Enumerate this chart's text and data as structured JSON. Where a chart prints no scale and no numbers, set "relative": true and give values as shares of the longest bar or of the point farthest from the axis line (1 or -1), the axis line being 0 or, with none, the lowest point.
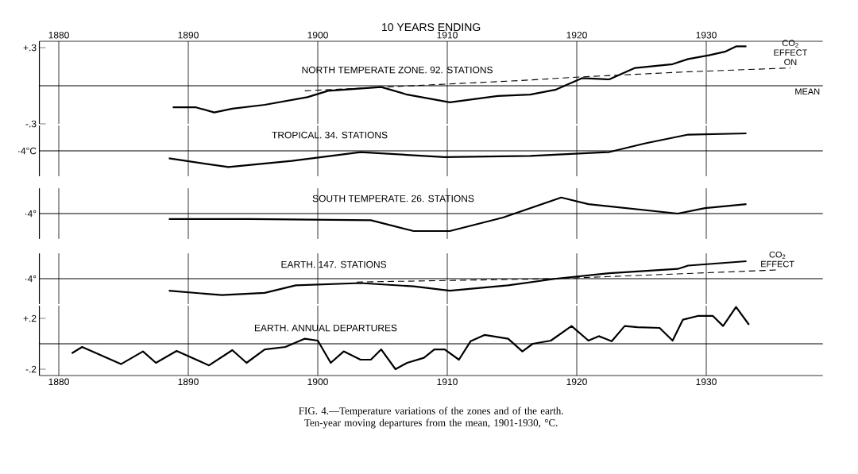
{
  "chart_data": [
    {
      "type": "line",
      "title": "NORTH TEMPERATE ZONE. 92. STATIONS",
      "xlabel": "10 YEARS ENDING",
      "xlim": [
        1878.5,
        1939
      ],
      "xticks": [
        1880,
        1890,
        1900,
        1910,
        1920,
        1930
      ],
      "ylim": [
        -0.3,
        0.35
      ],
      "yticks": [
        {
          "value": 0.3,
          "label": "+.3"
        },
        {
          "value": -0.3,
          "label": "-.3"
        }
      ],
      "grid": "x",
      "series": [
        {
          "color": "#000000",
          "x": [
            1888.8,
            1890.6,
            1892.0,
            1893.4,
            1895.9,
            1899.2,
            1900.8,
            1904.9,
            1906.9,
            1910.2,
            1913.9,
            1916.4,
            1918.4,
            1920.4,
            1922.5,
            1924.5,
            1927.4,
            1928.6,
            1930.2,
            1931.5,
            1932.3,
            1933.1
          ],
          "values": [
            -0.17,
            -0.17,
            -0.21,
            -0.18,
            -0.15,
            -0.09,
            -0.04,
            -0.01,
            -0.07,
            -0.13,
            -0.08,
            -0.07,
            -0.03,
            0.06,
            0.05,
            0.14,
            0.17,
            0.21,
            0.24,
            0.27,
            0.31,
            0.31
          ]
        },
        {
          "color": "#000000",
          "line_style": "dashed",
          "x": [
            1899,
            1915.5,
            1920.4,
            1928.6,
            1936.5
          ],
          "values": [
            -0.04,
            0.04,
            0.07,
            0.11,
            0.14
          ]
        }
      ],
      "ref_lines": [
        {
          "axis": "y",
          "value": 0,
          "label": "MEAN"
        }
      ],
      "annotations": [
        {
          "text": "CO$_{2}$ EFFECT ON",
          "x": 1936.5,
          "y": 0.14
        }
      ]
    },
    {
      "type": "line",
      "title": "TROPICAL. 34. STATIONS",
      "relative": true,
      "xlim": [
        1878.5,
        1939
      ],
      "xticks": [
        {
          "value": 1880,
          "label": null
        },
        {
          "value": 1890,
          "label": null
        },
        {
          "value": 1900,
          "label": null
        },
        {
          "value": 1910,
          "label": null
        },
        {
          "value": 1920,
          "label": null
        },
        {
          "value": 1930,
          "label": null
        }
      ],
      "ylabel": "·4°C",
      "grid": "x",
      "tick_labels": false,
      "series": [
        {
          "color": "#000000",
          "x": [
            1888.5,
            1893.1,
            1898.0,
            1903.3,
            1909.8,
            1916.4,
            1922.5,
            1925.3,
            1928.6,
            1933.1
          ],
          "values": [
            -0.43,
            -0.93,
            -0.57,
            -0.07,
            -0.36,
            -0.29,
            -0.07,
            0.43,
            0.93,
            1
          ]
        }
      ],
      "ref_lines": [
        {
          "axis": "y",
          "value": 0
        }
      ]
    },
    {
      "type": "line",
      "title": "SOUTH TEMPERATE. 26. STATIONS",
      "relative": true,
      "xlim": [
        1878.5,
        1939
      ],
      "xticks": [
        {
          "value": 1880,
          "label": null
        },
        {
          "value": 1890,
          "label": null
        },
        {
          "value": 1900,
          "label": null
        },
        {
          "value": 1910,
          "label": null
        },
        {
          "value": 1920,
          "label": null
        },
        {
          "value": 1930,
          "label": null
        }
      ],
      "ylabel": "·4°",
      "grid": "x",
      "tick_labels": false,
      "series": [
        {
          "color": "#000000",
          "x": [
            1888.5,
            1894.7,
            1904.1,
            1907.4,
            1910.2,
            1914.3,
            1918.8,
            1920.9,
            1927.8,
            1929.9,
            1933.1
          ],
          "values": [
            -0.31,
            -0.31,
            -0.38,
            -1,
            -1,
            -0.23,
            0.92,
            0.54,
            0,
            0.31,
            0.54
          ]
        }
      ],
      "ref_lines": [
        {
          "axis": "y",
          "value": 0
        }
      ]
    },
    {
      "type": "line",
      "title": "EARTH. 147. STATIONS",
      "relative": true,
      "xlim": [
        1878.5,
        1939
      ],
      "xticks": [
        {
          "value": 1880,
          "label": null
        },
        {
          "value": 1890,
          "label": null
        },
        {
          "value": 1900,
          "label": null
        },
        {
          "value": 1910,
          "label": null
        },
        {
          "value": 1920,
          "label": null
        },
        {
          "value": 1930,
          "label": null
        }
      ],
      "ylabel": "·4°",
      "grid": "x",
      "tick_labels": false,
      "series": [
        {
          "color": "#000000",
          "x": [
            1888.5,
            1892.6,
            1895.9,
            1898.3,
            1903.3,
            1907.4,
            1910.2,
            1914.7,
            1918.4,
            1922.5,
            1927.8,
            1928.6,
            1933.1
          ],
          "values": [
            -0.69,
            -0.94,
            -0.81,
            -0.38,
            -0.25,
            -0.44,
            -0.69,
            -0.38,
            0,
            0.31,
            0.56,
            0.75,
            1
          ]
        },
        {
          "color": "#000000",
          "line_style": "dashed",
          "x": [
            1903,
            1918.4,
            1929,
            1935.5
          ],
          "values": [
            -0.19,
            0,
            0.31,
            0.5
          ]
        }
      ],
      "ref_lines": [
        {
          "axis": "y",
          "value": 0
        }
      ],
      "annotations": [
        {
          "text": "CO$_{2}$ EFFECT",
          "x": 1935.5,
          "y": 0.5
        }
      ]
    },
    {
      "type": "line",
      "title": "EARTH. ANNUAL DEPARTURES",
      "xlim": [
        1878.5,
        1939
      ],
      "xticks": [
        1880,
        1890,
        1900,
        1910,
        1920,
        1930
      ],
      "ylim": [
        -0.25,
        0.3
      ],
      "yticks": [
        {
          "value": 0.2,
          "label": "+.2"
        },
        {
          "value": -0.2,
          "label": "-.2"
        }
      ],
      "grid": "x",
      "series": [
        {
          "color": "#000000",
          "x": [
            1881.0,
            1881.8,
            1884.8,
            1886.5,
            1887.5,
            1889.1,
            1891.6,
            1893.4,
            1894.5,
            1895.9,
            1897.5,
            1899.0,
            1900.0,
            1901.0,
            1902.0,
            1903.3,
            1904.1,
            1904.9,
            1906.0,
            1906.9,
            1908.2,
            1909.0,
            1909.8,
            1910.9,
            1911.8,
            1912.9,
            1914.7,
            1915.8,
            1916.6,
            1918.0,
            1919.6,
            1920.9,
            1921.7,
            1922.7,
            1923.7,
            1924.7,
            1926.4,
            1927.4,
            1928.2,
            1929.4,
            1930.5,
            1931.3,
            1932.3,
            1933.3
          ],
          "values": [
            -0.075,
            -0.025,
            -0.16,
            -0.06,
            -0.15,
            -0.056,
            -0.17,
            -0.05,
            -0.15,
            -0.044,
            -0.025,
            0.04,
            0.025,
            -0.15,
            -0.06,
            -0.125,
            -0.125,
            -0.044,
            -0.2,
            -0.15,
            -0.11,
            -0.044,
            -0.044,
            -0.125,
            0.02,
            0.07,
            0.04,
            -0.06,
            0.0,
            0.025,
            0.14,
            0.025,
            0.06,
            0.02,
            0.14,
            0.13,
            0.125,
            0.025,
            0.19,
            0.22,
            0.22,
            0.14,
            0.29,
            0.15
          ]
        }
      ],
      "ref_lines": [
        {
          "axis": "y",
          "value": 0
        }
      ],
      "annotations": [
        "FIG. 4.—Temperature variations of the zones and of the earth. Ten-year moving departures from the mean, 1901-1930, °C."
      ]
    }
  ]
}
